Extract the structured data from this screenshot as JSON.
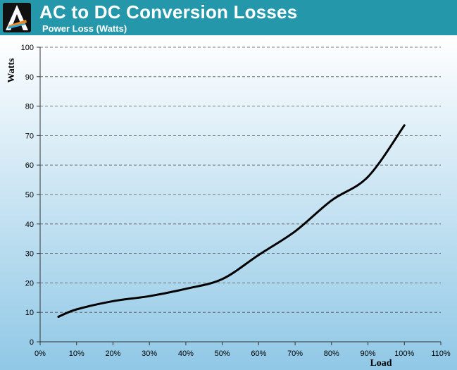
{
  "header": {
    "title": "AC to DC Conversion Losses",
    "subtitle": "Power Loss (Watts)",
    "background_color": "#2597ab",
    "logo_icon": "logo-a-icon"
  },
  "chart_data": {
    "type": "line",
    "ylabel": "Watts",
    "xlabel": "Load",
    "x_unit": "%",
    "xlim": [
      0,
      110
    ],
    "ylim": [
      0,
      100
    ],
    "x_ticks": [
      "0%",
      "10%",
      "20%",
      "30%",
      "40%",
      "50%",
      "60%",
      "70%",
      "80%",
      "90%",
      "100%",
      "110%"
    ],
    "y_ticks": [
      "0",
      "10",
      "20",
      "30",
      "40",
      "50",
      "60",
      "70",
      "80",
      "90",
      "100"
    ],
    "grid": "horizontal-dashed",
    "series": [
      {
        "color": "#000000",
        "x": [
          5,
          10,
          20,
          30,
          40,
          50,
          60,
          70,
          80,
          90,
          100
        ],
        "y": [
          8.5,
          11,
          13.8,
          15.5,
          18,
          21.3,
          29.5,
          37.5,
          48,
          56,
          73.5
        ]
      }
    ]
  }
}
